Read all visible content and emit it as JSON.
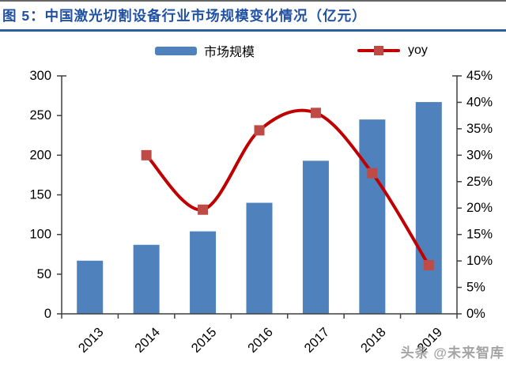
{
  "figure": {
    "title": "图 5：中国激光切割设备行业市场规模变化情况（亿元）",
    "title_color": "#2151A3",
    "divider_color": "#2B5F9F",
    "watermark": "头条 @未来智库",
    "watermark_color": "#8E8E8E"
  },
  "chart_data": {
    "type": "bar",
    "subtype": "bar+line combo, dual axis",
    "title": "中国激光切割设备行业市场规模变化情况（亿元）",
    "categories": [
      "2013",
      "2014",
      "2015",
      "2016",
      "2017",
      "2018",
      "2019"
    ],
    "series": [
      {
        "name": "市场规模",
        "type": "bar",
        "axis": "left",
        "unit": "亿元",
        "color": "#4F81BD",
        "values": [
          67,
          87,
          104,
          140,
          193,
          245,
          267
        ]
      },
      {
        "name": "yoy",
        "type": "line",
        "axis": "right",
        "color": "#C00000",
        "marker": "square",
        "marker_color": "#BF4B47",
        "values": [
          null,
          0.3,
          0.197,
          0.347,
          0.38,
          0.266,
          0.092
        ]
      }
    ],
    "left_axis": {
      "min": 0,
      "max": 300,
      "step": 50,
      "ticks": [
        "0",
        "50",
        "100",
        "150",
        "200",
        "250",
        "300"
      ]
    },
    "right_axis": {
      "min": 0,
      "max": 0.45,
      "step": 0.05,
      "ticks": [
        "0%",
        "5%",
        "10%",
        "15%",
        "20%",
        "25%",
        "30%",
        "35%",
        "40%",
        "45%"
      ]
    },
    "legend_position": "top",
    "grid": "off",
    "x_label_rotation": -45
  }
}
